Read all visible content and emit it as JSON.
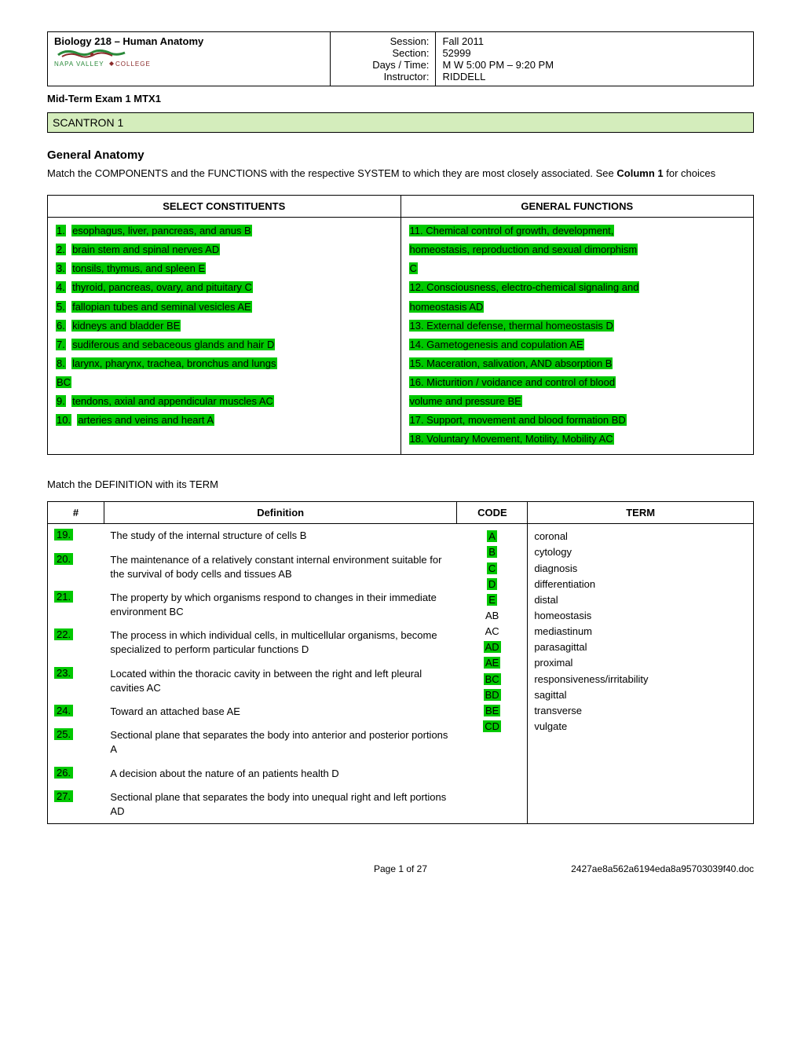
{
  "header": {
    "course": "Biology 218 – Human Anatomy",
    "college_upper": "NAPA VALLEY",
    "college_lower": "COLLEGE",
    "labels": {
      "session": "Session:",
      "section": "Section:",
      "days": "Days  / Time:",
      "instructor": "Instructor:"
    },
    "values": {
      "session": "Fall 2011",
      "section": "52999",
      "days": "M W 5:00 PM – 9:20 PM",
      "instructor": "RIDDELL"
    }
  },
  "exam_title": "Mid-Term Exam 1   MTX1",
  "scantron": "SCANTRON 1",
  "section1_title": "General Anatomy",
  "section1_instr_a": "Match the COMPONENTS and the FUNCTIONS with the respective SYSTEM to which they are most closely associated. See ",
  "section1_instr_b": "Column 1",
  "section1_instr_c": " for choices",
  "match_headers": {
    "left": "SELECT CONSTITUENTS",
    "right": "GENERAL FUNCTIONS"
  },
  "constituents": [
    {
      "n": "1.",
      "t": "esophagus, liver, pancreas, and anus B"
    },
    {
      "n": "2.",
      "t": "brain stem and spinal nerves AD"
    },
    {
      "n": "3.",
      "t": "tonsils, thymus, and spleen E"
    },
    {
      "n": "4.",
      "t": "thyroid, pancreas, ovary, and pituitary C"
    },
    {
      "n": "5.",
      "t": "fallopian tubes and seminal vesicles AE"
    },
    {
      "n": "6.",
      "t": "kidneys and bladder BE"
    },
    {
      "n": "7.",
      "t": "sudiferous and sebaceous glands and hair  D"
    },
    {
      "n": "8.",
      "t": "larynx, pharynx, trachea, bronchus and lungs",
      "cont": "BC"
    },
    {
      "n": "9.",
      "t": "tendons, axial and appendicular muscles AC"
    },
    {
      "n": "10.",
      "t": "arteries and veins and heart  A"
    }
  ],
  "functions": [
    {
      "n": "11.",
      "t": "Chemical control of growth, development,",
      "cont": "homeostasis, reproduction  and sexual dimorphism",
      "cont2": "C"
    },
    {
      "n": "12.",
      "t": "Consciousness, electro-chemical signaling and",
      "cont": "homeostasis AD"
    },
    {
      "n": "13.",
      "t": "External defense, thermal homeostasis D"
    },
    {
      "n": "14.",
      "t": "Gametogenesis and copulation  AE"
    },
    {
      "n": "15.",
      "t": "Maceration, salivation, AND absorption  B"
    },
    {
      "n": "16.",
      "t": "Micturition / voidance and control of blood",
      "cont": "volume and  pressure BE"
    },
    {
      "n": "17.",
      "t": "Support, movement and blood formation BD"
    },
    {
      "n": "18.",
      "t": "Voluntary Movement, Motility, Mobility AC"
    }
  ],
  "instr2": "Match the DEFINITION with its TERM",
  "def_headers": {
    "num": "#",
    "def": "Definition",
    "code": "CODE",
    "term": "TERM"
  },
  "defs": [
    {
      "n": "19. ",
      "t": "The study of the internal structure of cells   B"
    },
    {
      "n": "20. ",
      "t": "The maintenance of a relatively constant internal environment suitable for the survival of body cells and tissues   AB"
    },
    {
      "n": "21. ",
      "t": "The property by which organisms respond to changes in their immediate environment   BC"
    },
    {
      "n": "22. ",
      "t": "The process in which individual cells, in multicellular organisms, become specialized to perform particular functions D"
    },
    {
      "n": "23. ",
      "t": "Located within the thoracic cavity in between the right and left pleural cavities   AC"
    },
    {
      "n": "24. ",
      "t": "Toward an attached base    AE"
    },
    {
      "n": "25. ",
      "t": "Sectional plane that separates the body into anterior and posterior portions    A"
    },
    {
      "n": "26. ",
      "t": "A decision about the nature of an patients health  D"
    },
    {
      "n": "27.   ",
      "t": " Sectional plane that separates the body into unequal right and left portions    AD"
    }
  ],
  "codes": [
    "A",
    "B",
    "C",
    "D",
    "E",
    "AB",
    "AC",
    "AD",
    "AE",
    "BC",
    "BD",
    "BE",
    "CD"
  ],
  "terms": [
    "coronal",
    "cytology",
    "diagnosis",
    "differentiation",
    "distal",
    "homeostasis",
    "mediastinum",
    "parasagittal",
    "proximal",
    "responsiveness/irritability",
    "sagittal",
    "transverse",
    "vulgate"
  ],
  "code_hl": {
    "0": true,
    "1": true,
    "2": true,
    "3": true,
    "4": true,
    "7": true,
    "8": true,
    "9": true,
    "10": true,
    "11": true,
    "12": true
  },
  "footer": {
    "page": "Page 1 of 27",
    "file": "2427ae8a562a6194eda8a95703039f40.doc"
  },
  "colors": {
    "highlight": "#00c800",
    "scantron_bg": "#d4edbc"
  }
}
